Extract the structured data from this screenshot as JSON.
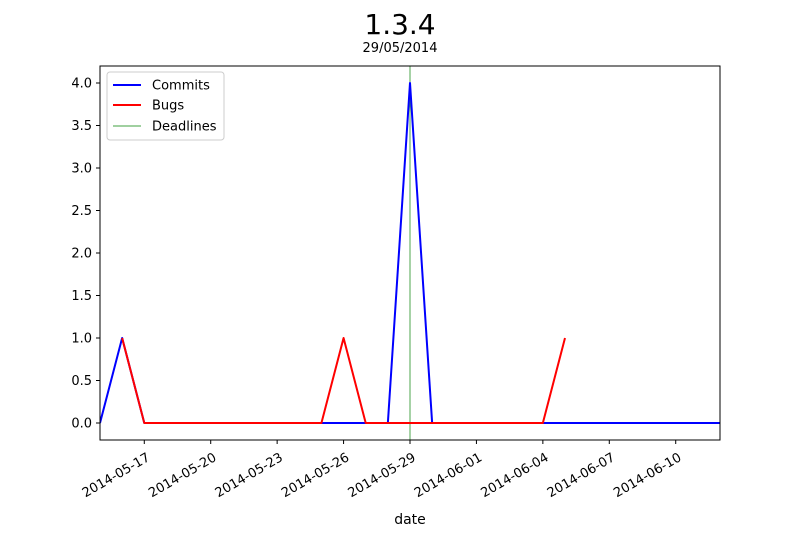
{
  "chart_data": {
    "type": "line",
    "title": "1.3.4",
    "subtitle": "29/05/2014",
    "xlabel": "date",
    "ylabel": "",
    "x_range": [
      "2014-05-15",
      "2014-06-12"
    ],
    "ylim": [
      -0.2,
      4.2
    ],
    "x_ticks": [
      "2014-05-17",
      "2014-05-20",
      "2014-05-23",
      "2014-05-26",
      "2014-05-29",
      "2014-06-01",
      "2014-06-04",
      "2014-06-07",
      "2014-06-10"
    ],
    "y_ticks": [
      "0.0",
      "0.5",
      "1.0",
      "1.5",
      "2.0",
      "2.5",
      "3.0",
      "3.5",
      "4.0"
    ],
    "grid": false,
    "legend_position": "upper-left",
    "series": [
      {
        "name": "Commits",
        "color": "#0000ff",
        "points": [
          {
            "x": "2014-05-15",
            "y": 0
          },
          {
            "x": "2014-05-16",
            "y": 1
          },
          {
            "x": "2014-05-17",
            "y": 0
          },
          {
            "x": "2014-05-28",
            "y": 0
          },
          {
            "x": "2014-05-29",
            "y": 4
          },
          {
            "x": "2014-05-30",
            "y": 0
          },
          {
            "x": "2014-06-12",
            "y": 0
          }
        ]
      },
      {
        "name": "Bugs",
        "color": "#ff0000",
        "points": [
          {
            "x": "2014-05-16",
            "y": 1
          },
          {
            "x": "2014-05-17",
            "y": 0
          },
          {
            "x": "2014-05-25",
            "y": 0
          },
          {
            "x": "2014-05-26",
            "y": 1
          },
          {
            "x": "2014-05-27",
            "y": 0
          },
          {
            "x": "2014-06-04",
            "y": 0
          },
          {
            "x": "2014-06-05",
            "y": 1
          }
        ]
      }
    ],
    "deadlines": {
      "name": "Deadlines",
      "color": "#008000",
      "dates": [
        "2014-05-29"
      ]
    }
  }
}
